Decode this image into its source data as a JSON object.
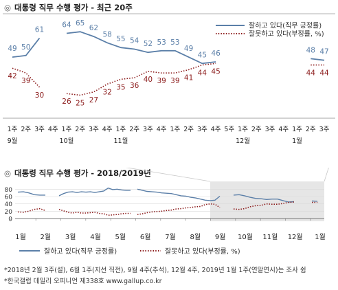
{
  "chart_data": [
    {
      "type": "line",
      "title": "대통령 직무 수행 평가 - 최근 20주",
      "categories": [
        "1주",
        "2주",
        "3주",
        "4주",
        "1주",
        "2주",
        "3주",
        "4주",
        "1주",
        "2주",
        "3주",
        "4주",
        "1주",
        "2주",
        "3주",
        "4주",
        "5주",
        "1주",
        "2주",
        "3주",
        "4주",
        "1주",
        "2주",
        "3주"
      ],
      "month_labels": [
        {
          "label": "9월",
          "index": 0
        },
        {
          "label": "10월",
          "index": 4
        },
        {
          "label": "11월",
          "index": 8
        },
        {
          "label": "12월",
          "index": 17
        },
        {
          "label": "1월",
          "index": 21
        }
      ],
      "series": [
        {
          "name": "잘하고 있다(직무 긍정률)",
          "color": "#5b7fa8",
          "values": [
            49,
            50,
            61,
            null,
            64,
            65,
            62,
            58,
            55,
            54,
            52,
            53,
            53,
            49,
            45,
            46,
            null,
            null,
            null,
            null,
            null,
            null,
            48,
            47
          ]
        },
        {
          "name": "잘못하고 있다(부정률, %)",
          "color": "#8b1a1a",
          "values": [
            42,
            39,
            30,
            null,
            26,
            25,
            27,
            32,
            35,
            36,
            40,
            39,
            39,
            41,
            44,
            45,
            null,
            null,
            null,
            null,
            null,
            null,
            44,
            44
          ]
        }
      ],
      "ylim": [
        20,
        72
      ],
      "legend": "top-right"
    },
    {
      "type": "line",
      "title": "대통령 직무 수행 평가 - 2018/2019년",
      "yticks": [
        0,
        20,
        40,
        60,
        80
      ],
      "ylim": [
        0,
        90
      ],
      "x_months": [
        "1월",
        "2월",
        "3월",
        "4월",
        "5월",
        "6월",
        "7월",
        "8월",
        "9월",
        "10월",
        "11월",
        "12월",
        "1월"
      ],
      "legend": "bottom",
      "series": [
        {
          "name": "잘하고 있다(직무 긍정률)",
          "color": "#5b7fa8",
          "segments": [
            [
              72,
              73,
              70,
              65,
              64,
              64
            ],
            [
              62,
              68,
              72,
              73,
              71,
              73,
              72,
              73,
              71,
              73,
              75,
              83,
              79,
              80,
              78,
              77,
              77
            ],
            [
              80,
              77,
              74,
              73,
              72,
              70,
              69,
              68,
              65,
              62,
              61,
              58,
              56,
              53,
              50,
              49,
              50,
              61
            ],
            [
              64,
              65,
              62,
              58,
              55,
              54,
              52,
              53,
              53,
              49,
              45,
              46
            ],
            [
              48,
              47
            ]
          ]
        },
        {
          "name": "잘못하고 있다(부정률, %)",
          "color": "#8b1a1a",
          "segments": [
            [
              18,
              17,
              20,
              25,
              27,
              22
            ],
            [
              25,
              21,
              17,
              15,
              17,
              15,
              15,
              16,
              17,
              14,
              13,
              9,
              10,
              11,
              13,
              14,
              14
            ],
            [
              11,
              13,
              16,
              18,
              19,
              20,
              22,
              23,
              26,
              27,
              29,
              30,
              32,
              33,
              38,
              40,
              39,
              30
            ],
            [
              26,
              25,
              27,
              32,
              35,
              36,
              40,
              39,
              39,
              41,
              44,
              45
            ],
            [
              44,
              44
            ]
          ]
        }
      ]
    }
  ],
  "notes": [
    "*2018년 2월 3주(설), 6월 1주(지선 직전), 9월 4주(추석), 12월 4주, 2019년 1월 1주(연말연시)는 조사 쉼",
    "*한국갤럽 데일리 오피니언 제338호 www.gallup.co.kr"
  ],
  "header_mark": "◎"
}
